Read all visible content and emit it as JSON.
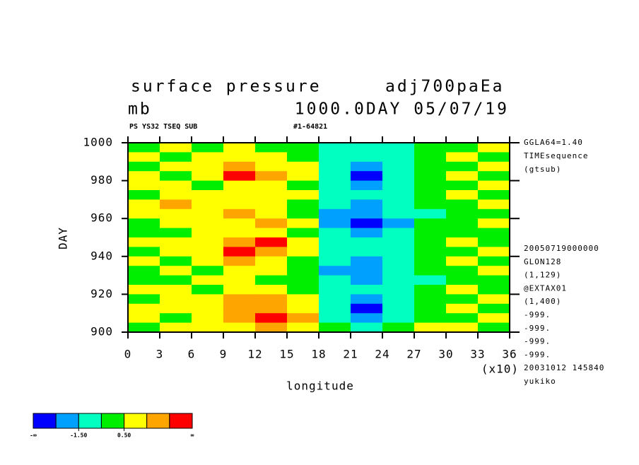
{
  "chart_data": {
    "type": "heatmap",
    "title": "surface pressure",
    "dataset": "adj700paEa",
    "units": "mb",
    "subtitle": "1000.0DAY 05/07/19",
    "header_left": "PS YS32 TSEQ SUB",
    "header_right": "#1-64821",
    "xlabel": "longitude",
    "x_scale_label": "(x10)",
    "ylabel": "DAY",
    "xlim": [
      0,
      36
    ],
    "ylim": [
      900,
      1000
    ],
    "xticks": [
      0,
      3,
      6,
      9,
      12,
      15,
      18,
      21,
      24,
      27,
      30,
      33,
      36
    ],
    "yticks": [
      900,
      920,
      940,
      960,
      980,
      1000
    ],
    "z": [
      [
        0,
        1,
        0,
        1,
        0,
        0,
        -1,
        -1,
        -1,
        0,
        0,
        1
      ],
      [
        1,
        0,
        1,
        1,
        1,
        0,
        -1,
        -1,
        -1,
        0,
        1,
        0
      ],
      [
        0,
        1,
        1,
        2,
        1,
        1,
        -1,
        -2,
        -1,
        0,
        0,
        1
      ],
      [
        1,
        0,
        1,
        3,
        2,
        1,
        -1,
        -3,
        -1,
        0,
        1,
        0
      ],
      [
        1,
        1,
        0,
        1,
        1,
        0,
        -1,
        -2,
        -1,
        0,
        0,
        1
      ],
      [
        0,
        1,
        1,
        1,
        1,
        1,
        -1,
        -1,
        -1,
        0,
        1,
        0
      ],
      [
        1,
        2,
        1,
        1,
        1,
        0,
        -1,
        -2,
        -1,
        0,
        0,
        1
      ],
      [
        1,
        1,
        1,
        2,
        1,
        0,
        -2,
        -2,
        -1,
        -1,
        0,
        0
      ],
      [
        0,
        1,
        1,
        1,
        2,
        1,
        -2,
        -3,
        -2,
        0,
        0,
        1
      ],
      [
        0,
        0,
        1,
        1,
        1,
        0,
        -1,
        -2,
        -1,
        0,
        0,
        0
      ],
      [
        1,
        1,
        1,
        2,
        3,
        1,
        -1,
        -1,
        -1,
        0,
        1,
        0
      ],
      [
        0,
        1,
        1,
        3,
        2,
        1,
        -1,
        -1,
        -1,
        0,
        0,
        1
      ],
      [
        1,
        0,
        1,
        2,
        1,
        0,
        -1,
        -2,
        -1,
        0,
        1,
        0
      ],
      [
        0,
        1,
        0,
        1,
        1,
        0,
        -2,
        -2,
        -1,
        0,
        0,
        1
      ],
      [
        0,
        0,
        1,
        1,
        0,
        0,
        -1,
        -2,
        -1,
        -1,
        0,
        0
      ],
      [
        1,
        1,
        0,
        1,
        1,
        0,
        -1,
        -1,
        -1,
        0,
        1,
        0
      ],
      [
        0,
        1,
        1,
        2,
        2,
        1,
        -1,
        -2,
        -1,
        0,
        0,
        1
      ],
      [
        1,
        1,
        1,
        2,
        2,
        1,
        -1,
        -3,
        -1,
        0,
        1,
        0
      ],
      [
        1,
        0,
        1,
        2,
        3,
        2,
        -1,
        -2,
        -1,
        0,
        0,
        1
      ],
      [
        0,
        1,
        1,
        1,
        2,
        1,
        0,
        -1,
        0,
        1,
        1,
        0
      ]
    ],
    "levels": [
      -2.5,
      -1.5,
      -0.5,
      0.5,
      1.5,
      2.5
    ],
    "colors": [
      "#0000ff",
      "#00a0ff",
      "#00ffc0",
      "#00ee00",
      "#ffff00",
      "#ffa500",
      "#ff0000"
    ],
    "colorbar_ticks": [
      {
        "value": -1.5,
        "label": "-1.50"
      },
      {
        "value": 0.5,
        "label": "0.50"
      }
    ],
    "colorbar_min_label": "-∞",
    "colorbar_max_label": "∞",
    "info_top": [
      "GGLA64=1.40",
      "TIMEsequence",
      "(gtsub)"
    ],
    "info_bottom": [
      "20050719000000",
      "GLON128",
      "(1,129)",
      "@EXTAX01",
      "(1,400)",
      "-999.",
      "-999.",
      "-999.",
      "-999.",
      "20031012 145840",
      "yukiko"
    ]
  }
}
